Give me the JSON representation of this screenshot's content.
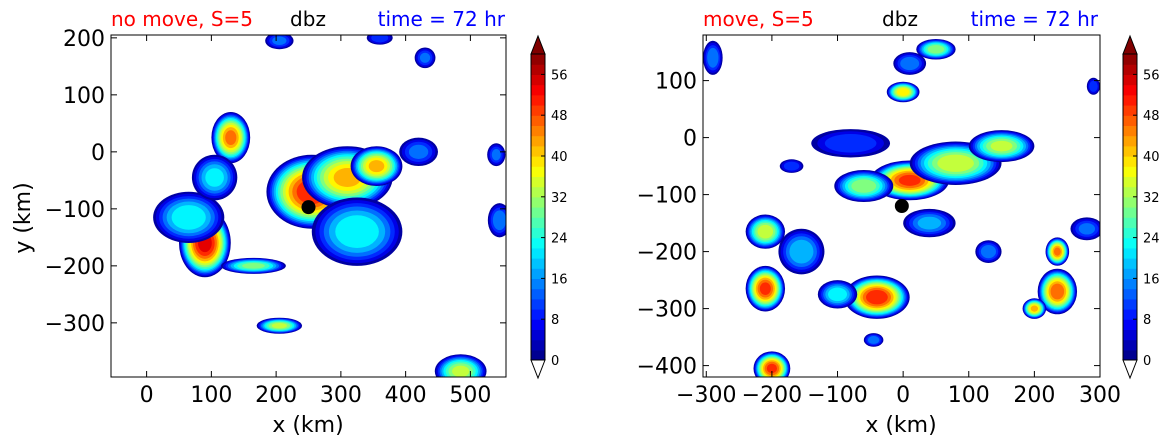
{
  "colors": {
    "title_left": "#ff0000",
    "title_center": "#000000",
    "title_right": "#0000ff",
    "marker": "#000000"
  },
  "chart_data": [
    {
      "type": "heatmap",
      "subtype": "filled-contour",
      "title_left": "no move, S=5",
      "title_center": "dbz",
      "title_right": "time = 72 hr",
      "xlabel": "x (km)",
      "ylabel": "y (km)",
      "xlim": [
        -55,
        555
      ],
      "ylim": [
        -395,
        205
      ],
      "xticks": [
        0,
        100,
        200,
        300,
        400,
        500
      ],
      "xtick_labels": [
        "0",
        "100",
        "200",
        "300",
        "400",
        "500"
      ],
      "yticks": [
        200,
        100,
        0,
        -100,
        -200,
        -300
      ],
      "ytick_labels": [
        "200",
        "100",
        "0",
        "−100",
        "−200",
        "−300"
      ],
      "marker": {
        "x": 250,
        "y": -97
      },
      "blobs": [
        {
          "x": 255,
          "y": -70,
          "rx": 70,
          "ry": 65,
          "peak": 50
        },
        {
          "x": 310,
          "y": -45,
          "rx": 70,
          "ry": 55,
          "peak": 40
        },
        {
          "x": 355,
          "y": -25,
          "rx": 40,
          "ry": 35,
          "peak": 40
        },
        {
          "x": 325,
          "y": -140,
          "rx": 70,
          "ry": 60,
          "peak": 22
        },
        {
          "x": 420,
          "y": 0,
          "rx": 30,
          "ry": 25,
          "peak": 12
        },
        {
          "x": 90,
          "y": -160,
          "rx": 40,
          "ry": 60,
          "peak": 52
        },
        {
          "x": 65,
          "y": -115,
          "rx": 55,
          "ry": 45,
          "peak": 22
        },
        {
          "x": 130,
          "y": 25,
          "rx": 30,
          "ry": 45,
          "peak": 44
        },
        {
          "x": 105,
          "y": -45,
          "rx": 35,
          "ry": 40,
          "peak": 20
        },
        {
          "x": 165,
          "y": -200,
          "rx": 50,
          "ry": 14,
          "peak": 28
        },
        {
          "x": 205,
          "y": -305,
          "rx": 35,
          "ry": 14,
          "peak": 32
        },
        {
          "x": 485,
          "y": -385,
          "rx": 40,
          "ry": 30,
          "peak": 32
        },
        {
          "x": 545,
          "y": -120,
          "rx": 18,
          "ry": 30,
          "peak": 14
        },
        {
          "x": 540,
          "y": -5,
          "rx": 14,
          "ry": 20,
          "peak": 12
        },
        {
          "x": 205,
          "y": 195,
          "rx": 22,
          "ry": 15,
          "peak": 12
        },
        {
          "x": 360,
          "y": 200,
          "rx": 20,
          "ry": 12,
          "peak": 10
        },
        {
          "x": 430,
          "y": 165,
          "rx": 16,
          "ry": 18,
          "peak": 12
        }
      ]
    },
    {
      "type": "heatmap",
      "subtype": "filled-contour",
      "title_left": "move, S=5",
      "title_center": "dbz",
      "title_right": "time = 72 hr",
      "xlabel": "x (km)",
      "ylabel": "",
      "xlim": [
        -305,
        300
      ],
      "ylim": [
        -420,
        180
      ],
      "xticks": [
        -300,
        -200,
        -100,
        0,
        100,
        200,
        300
      ],
      "xtick_labels": [
        "−300",
        "−200",
        "−100",
        "0",
        "100",
        "200",
        "300"
      ],
      "yticks": [
        100,
        0,
        -100,
        -200,
        -300,
        -400
      ],
      "ytick_labels": [
        "100",
        "0",
        "−100",
        "−200",
        "−300",
        "−400"
      ],
      "marker": {
        "x": -2,
        "y": -120
      },
      "blobs": [
        {
          "x": 10,
          "y": -75,
          "rx": 60,
          "ry": 35,
          "peak": 48
        },
        {
          "x": 80,
          "y": -45,
          "rx": 70,
          "ry": 38,
          "peak": 34
        },
        {
          "x": 150,
          "y": -15,
          "rx": 50,
          "ry": 28,
          "peak": 32
        },
        {
          "x": -60,
          "y": -85,
          "rx": 45,
          "ry": 28,
          "peak": 30
        },
        {
          "x": 40,
          "y": -150,
          "rx": 40,
          "ry": 25,
          "peak": 16
        },
        {
          "x": -210,
          "y": -265,
          "rx": 30,
          "ry": 40,
          "peak": 48
        },
        {
          "x": -210,
          "y": -165,
          "rx": 30,
          "ry": 30,
          "peak": 34
        },
        {
          "x": -155,
          "y": -200,
          "rx": 35,
          "ry": 40,
          "peak": 18
        },
        {
          "x": -40,
          "y": -280,
          "rx": 50,
          "ry": 38,
          "peak": 50
        },
        {
          "x": -100,
          "y": -275,
          "rx": 30,
          "ry": 25,
          "peak": 22
        },
        {
          "x": 235,
          "y": -270,
          "rx": 30,
          "ry": 40,
          "peak": 46
        },
        {
          "x": 235,
          "y": -200,
          "rx": 18,
          "ry": 25,
          "peak": 44
        },
        {
          "x": 200,
          "y": -300,
          "rx": 18,
          "ry": 18,
          "peak": 40
        },
        {
          "x": 0,
          "y": 80,
          "rx": 25,
          "ry": 18,
          "peak": 38
        },
        {
          "x": 50,
          "y": 155,
          "rx": 30,
          "ry": 18,
          "peak": 30
        },
        {
          "x": 10,
          "y": 130,
          "rx": 25,
          "ry": 20,
          "peak": 14
        },
        {
          "x": -80,
          "y": -10,
          "rx": 60,
          "ry": 25,
          "peak": 10
        },
        {
          "x": -200,
          "y": -405,
          "rx": 28,
          "ry": 30,
          "peak": 48
        },
        {
          "x": -290,
          "y": 140,
          "rx": 15,
          "ry": 30,
          "peak": 14
        },
        {
          "x": 280,
          "y": -160,
          "rx": 25,
          "ry": 20,
          "peak": 12
        },
        {
          "x": 130,
          "y": -200,
          "rx": 20,
          "ry": 20,
          "peak": 14
        },
        {
          "x": -45,
          "y": -355,
          "rx": 15,
          "ry": 12,
          "peak": 14
        },
        {
          "x": -170,
          "y": -50,
          "rx": 18,
          "ry": 12,
          "peak": 10
        },
        {
          "x": 290,
          "y": 90,
          "rx": 10,
          "ry": 15,
          "peak": 10
        }
      ]
    }
  ],
  "colorbar": {
    "range": [
      0,
      60
    ],
    "levels": 30,
    "extend": "both",
    "ticks": [
      "0",
      "8",
      "16",
      "24",
      "32",
      "40",
      "48",
      "56"
    ]
  }
}
